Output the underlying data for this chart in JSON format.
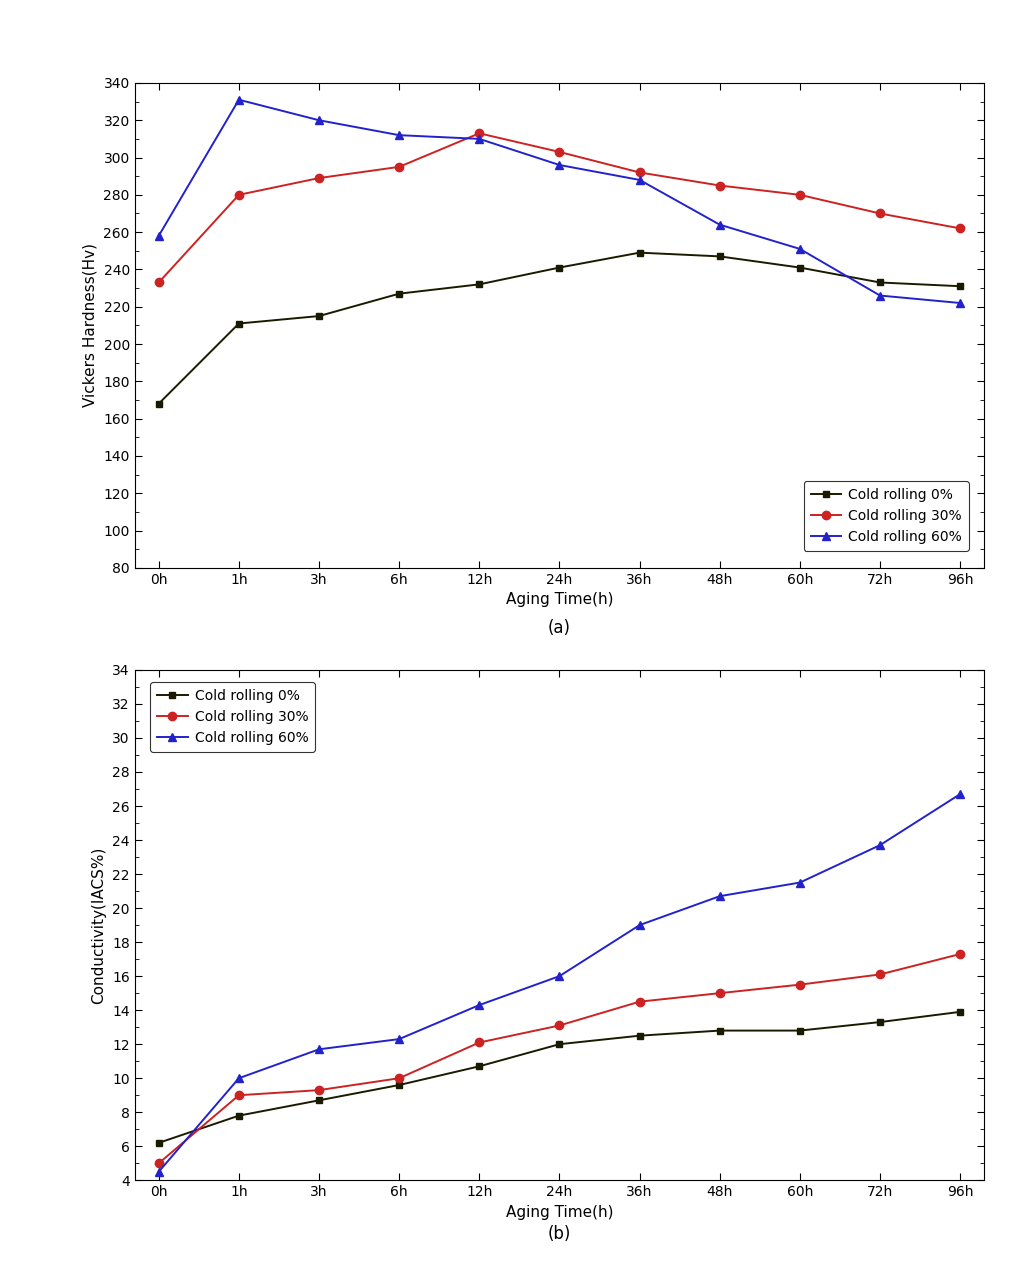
{
  "x_labels": [
    "0h",
    "1h",
    "3h",
    "6h",
    "12h",
    "24h",
    "36h",
    "48h",
    "60h",
    "72h",
    "96h"
  ],
  "x_positions": [
    0,
    1,
    2,
    3,
    4,
    5,
    6,
    7,
    8,
    9,
    10
  ],
  "hardness_0pct": [
    168,
    211,
    215,
    227,
    232,
    241,
    249,
    247,
    241,
    233,
    231
  ],
  "hardness_30pct": [
    233,
    280,
    289,
    295,
    313,
    303,
    292,
    285,
    280,
    270,
    262
  ],
  "hardness_60pct": [
    258,
    331,
    320,
    312,
    310,
    296,
    288,
    264,
    251,
    226,
    222
  ],
  "conductivity_0pct": [
    6.2,
    7.8,
    8.7,
    9.6,
    10.7,
    12.0,
    12.5,
    12.8,
    12.8,
    13.3,
    13.9
  ],
  "conductivity_30pct": [
    5.0,
    9.0,
    9.3,
    10.0,
    12.1,
    13.1,
    14.5,
    15.0,
    15.5,
    16.1,
    17.3
  ],
  "conductivity_60pct": [
    4.5,
    10.0,
    11.7,
    12.3,
    14.3,
    16.0,
    19.0,
    20.7,
    21.5,
    23.7,
    26.7
  ],
  "color_0pct": "#1a1a00",
  "color_30pct": "#cc2222",
  "color_60pct": "#2222cc",
  "hardness_ylabel": "Vickers Hardness(Hv)",
  "conductivity_ylabel": "Conductivity(IACS%)",
  "xlabel": "Aging Time(h)",
  "hardness_ylim": [
    80,
    340
  ],
  "hardness_yticks": [
    80,
    100,
    120,
    140,
    160,
    180,
    200,
    220,
    240,
    260,
    280,
    300,
    320,
    340
  ],
  "conductivity_ylim": [
    4,
    34
  ],
  "conductivity_yticks": [
    4,
    6,
    8,
    10,
    12,
    14,
    16,
    18,
    20,
    22,
    24,
    26,
    28,
    30,
    32,
    34
  ],
  "label_0pct": "Cold rolling 0%",
  "label_30pct": "Cold rolling 30%",
  "label_60pct": "Cold rolling 60%",
  "caption_a": "(a)",
  "caption_b": "(b)"
}
